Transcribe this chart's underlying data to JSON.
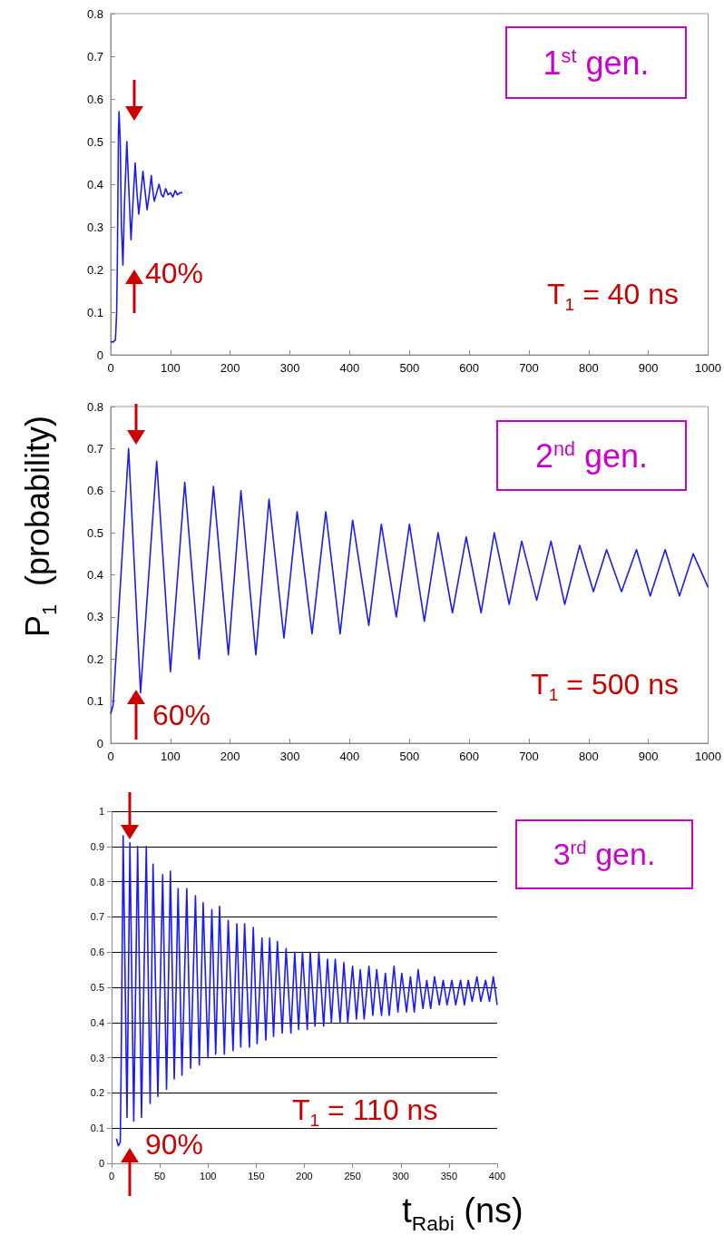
{
  "chart_data": [
    {
      "type": "line",
      "xlim": [
        0,
        1000
      ],
      "xticks": [
        0,
        100,
        200,
        300,
        400,
        500,
        600,
        700,
        800,
        900,
        1000
      ],
      "ylim": [
        0,
        0.8
      ],
      "yticks": [
        0,
        0.1,
        0.2,
        0.3,
        0.4,
        0.5,
        0.6,
        0.7,
        0.8
      ],
      "grid": false,
      "annotations": [
        "1$^{st}$ gen.",
        "40%",
        "T$_{1}$ = 40 ns"
      ],
      "series": [
        {
          "color": "#1c1cf0",
          "x": [
            0,
            4,
            8,
            10,
            11,
            12,
            13,
            14,
            16,
            18,
            20.5,
            23,
            27,
            30,
            34,
            37,
            41,
            44,
            47,
            50,
            54,
            57,
            61,
            64,
            68,
            70,
            73,
            77,
            81,
            85,
            88,
            92,
            96,
            100,
            104,
            108,
            112,
            116,
            120
          ],
          "values": [
            0.03,
            0.03,
            0.035,
            0.1,
            0.2,
            0.35,
            0.52,
            0.57,
            0.5,
            0.3,
            0.21,
            0.35,
            0.5,
            0.4,
            0.27,
            0.35,
            0.45,
            0.38,
            0.33,
            0.37,
            0.43,
            0.39,
            0.34,
            0.37,
            0.42,
            0.39,
            0.36,
            0.38,
            0.4,
            0.375,
            0.37,
            0.39,
            0.375,
            0.38,
            0.37,
            0.385,
            0.375,
            0.38,
            0.38
          ]
        }
      ]
    },
    {
      "type": "line",
      "xlim": [
        0,
        1000
      ],
      "xticks": [
        0,
        100,
        200,
        300,
        400,
        500,
        600,
        700,
        800,
        900,
        1000
      ],
      "ylim": [
        0,
        0.8
      ],
      "yticks": [
        0,
        0.1,
        0.2,
        0.3,
        0.4,
        0.5,
        0.6,
        0.7,
        0.8
      ],
      "grid": false,
      "ylabel": "P$_{1}$  (probability)",
      "annotations": [
        "2$^{nd}$ gen.",
        "60%",
        "T$_{1}$ = 500 ns"
      ],
      "series": [
        {
          "color": "#1c1cf0",
          "x": [
            0,
            4,
            30,
            50,
            77,
            100,
            124,
            148,
            172,
            197,
            218,
            243,
            265,
            290,
            312,
            337,
            360,
            384,
            405,
            432,
            453,
            478,
            500,
            525,
            548,
            572,
            595,
            620,
            642,
            667,
            688,
            713,
            737,
            760,
            785,
            808,
            830,
            855,
            880,
            903,
            928,
            952,
            975,
            1000
          ],
          "values": [
            0.07,
            0.09,
            0.7,
            0.12,
            0.67,
            0.17,
            0.62,
            0.2,
            0.61,
            0.21,
            0.6,
            0.21,
            0.58,
            0.25,
            0.55,
            0.26,
            0.55,
            0.26,
            0.53,
            0.28,
            0.52,
            0.3,
            0.52,
            0.29,
            0.5,
            0.31,
            0.49,
            0.31,
            0.5,
            0.33,
            0.48,
            0.34,
            0.48,
            0.33,
            0.47,
            0.36,
            0.46,
            0.36,
            0.46,
            0.35,
            0.46,
            0.35,
            0.45,
            0.37
          ]
        }
      ]
    },
    {
      "type": "line",
      "xlim": [
        0,
        400
      ],
      "xticks": [
        0,
        50,
        100,
        150,
        200,
        250,
        300,
        350,
        400
      ],
      "ylim": [
        0,
        1
      ],
      "yticks": [
        0,
        0.1,
        0.2,
        0.3,
        0.4,
        0.5,
        0.6,
        0.7,
        0.8,
        0.9,
        1
      ],
      "grid": "y",
      "xlabel": "t$_{Rabi}$ (ns)",
      "annotations": [
        "3$^{rd}$ gen.",
        "90%",
        "T$_{1}$ = 110 ns"
      ],
      "series": [
        {
          "color": "#1a1aff",
          "x": [
            5,
            7,
            9,
            10,
            12,
            16,
            19,
            23,
            27,
            31,
            36,
            40,
            43,
            48,
            53,
            57,
            61,
            65,
            69,
            73,
            78,
            82,
            87,
            91,
            95,
            100,
            104,
            108,
            112,
            117,
            121,
            126,
            130,
            134,
            138,
            143,
            147,
            151,
            156,
            160,
            164,
            168,
            172,
            177,
            181,
            186,
            190,
            194,
            198,
            203,
            206,
            211,
            215,
            220,
            224,
            228,
            232,
            237,
            241,
            245,
            250,
            254,
            258,
            262,
            267,
            271,
            275,
            280,
            284,
            288,
            293,
            297,
            301,
            306,
            310,
            314,
            318,
            323,
            327,
            331,
            335,
            340,
            344,
            348,
            353,
            357,
            362,
            366,
            370,
            374,
            379,
            383,
            388,
            392,
            396,
            400
          ],
          "values": [
            0.07,
            0.05,
            0.06,
            0.3,
            0.93,
            0.13,
            0.91,
            0.12,
            0.9,
            0.13,
            0.9,
            0.17,
            0.85,
            0.19,
            0.82,
            0.21,
            0.83,
            0.24,
            0.78,
            0.25,
            0.78,
            0.27,
            0.76,
            0.28,
            0.74,
            0.3,
            0.72,
            0.31,
            0.73,
            0.31,
            0.69,
            0.32,
            0.68,
            0.33,
            0.68,
            0.33,
            0.67,
            0.34,
            0.64,
            0.35,
            0.64,
            0.36,
            0.63,
            0.37,
            0.61,
            0.37,
            0.6,
            0.38,
            0.6,
            0.38,
            0.6,
            0.39,
            0.6,
            0.39,
            0.58,
            0.4,
            0.58,
            0.4,
            0.57,
            0.4,
            0.56,
            0.41,
            0.55,
            0.41,
            0.56,
            0.42,
            0.55,
            0.42,
            0.54,
            0.42,
            0.56,
            0.43,
            0.54,
            0.43,
            0.53,
            0.43,
            0.55,
            0.44,
            0.52,
            0.44,
            0.53,
            0.45,
            0.52,
            0.45,
            0.52,
            0.45,
            0.52,
            0.45,
            0.52,
            0.46,
            0.53,
            0.46,
            0.52,
            0.46,
            0.53,
            0.45
          ]
        }
      ]
    }
  ]
}
